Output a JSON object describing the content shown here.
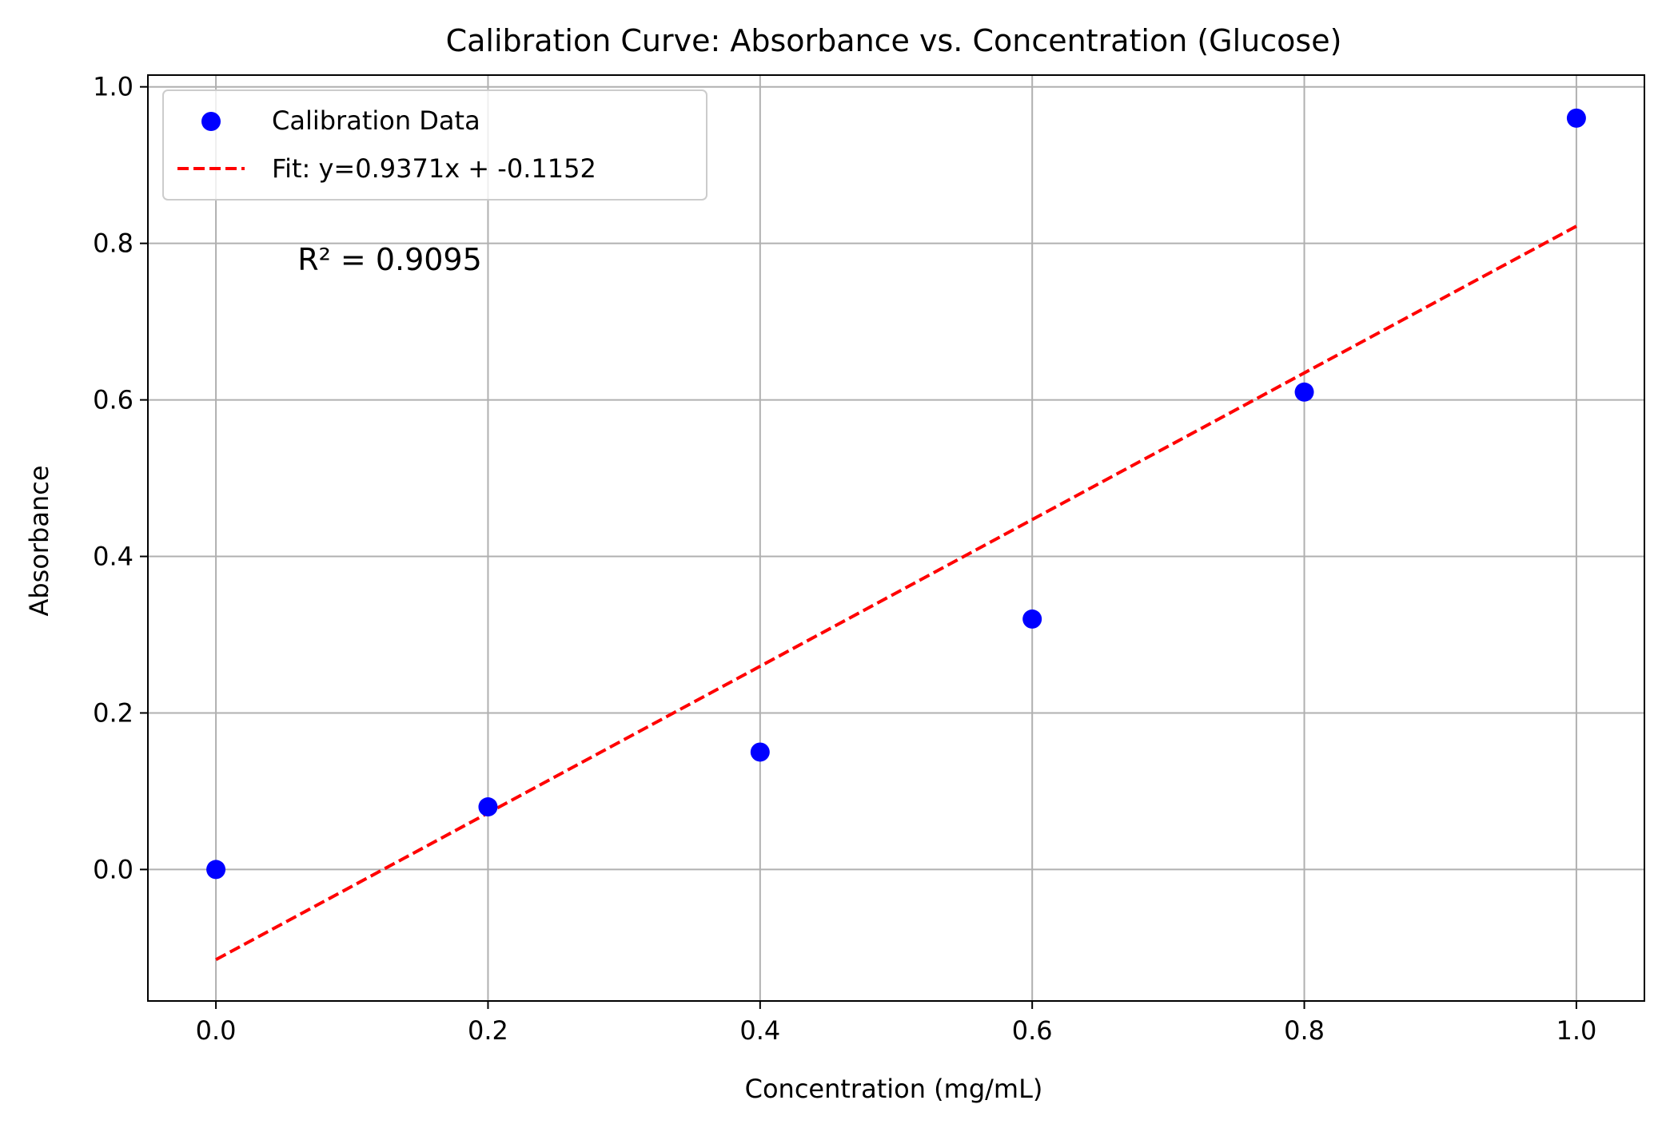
{
  "chart_data": {
    "type": "scatter",
    "title": "Calibration Curve: Absorbance vs. Concentration (Glucose)",
    "xlabel": "Concentration (mg/mL)",
    "ylabel": "Absorbance",
    "xlim": [
      -0.05,
      1.05
    ],
    "ylim": [
      -0.168,
      1.015
    ],
    "xticks": [
      0.0,
      0.2,
      0.4,
      0.6,
      0.8,
      1.0
    ],
    "xtick_labels": [
      "0.0",
      "0.2",
      "0.4",
      "0.6",
      "0.8",
      "1.0"
    ],
    "yticks": [
      0.0,
      0.2,
      0.4,
      0.6,
      0.8,
      1.0
    ],
    "ytick_labels": [
      "0.0",
      "0.2",
      "0.4",
      "0.6",
      "0.8",
      "1.0"
    ],
    "grid": true,
    "legend_position": "top-left",
    "series": [
      {
        "name": "Calibration Data",
        "kind": "scatter",
        "color": "#0000ff",
        "x": [
          0.0,
          0.2,
          0.4,
          0.6,
          0.8,
          1.0
        ],
        "y": [
          0.0,
          0.08,
          0.15,
          0.32,
          0.61,
          0.96
        ]
      },
      {
        "name": "Fit: y=0.9371x + -0.1152",
        "kind": "line",
        "style": "dashed",
        "color": "#ff0000",
        "slope": 0.9371,
        "intercept": -0.1152,
        "x_range": [
          0.0,
          1.0
        ]
      }
    ],
    "annotation": {
      "text": "R² = 0.9095",
      "x": 0.06,
      "y": 0.78
    }
  }
}
